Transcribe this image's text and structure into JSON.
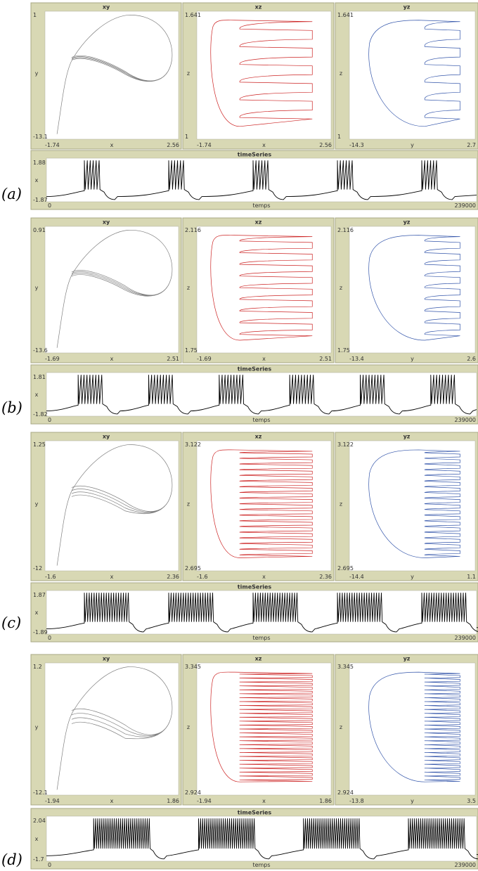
{
  "chart_data": [
    {
      "panel": "(a)",
      "type": "line",
      "phase": {
        "xy": {
          "title": "xy",
          "xlabel": "x",
          "ylabel": "y",
          "xlim": [
            -1.74,
            2.56
          ],
          "ylim": [
            -13.1,
            1
          ],
          "x_tick_labels": [
            "-1.74",
            "2.56"
          ],
          "y_tick_labels": [
            "1",
            "-13.1"
          ]
        },
        "xz": {
          "title": "xz",
          "xlabel": "x",
          "ylabel": "z",
          "xlim": [
            -1.74,
            2.56
          ],
          "ylim": [
            1,
            1.641
          ],
          "x_tick_labels": [
            "-1.74",
            "2.56"
          ],
          "y_tick_labels": [
            "1.641",
            "1"
          ]
        },
        "yz": {
          "title": "yz",
          "xlabel": "y",
          "ylabel": "z",
          "xlim": [
            -14.3,
            2.7
          ],
          "ylim": [
            1,
            1.641
          ],
          "x_tick_labels": [
            "-14.3",
            "2.7"
          ],
          "y_tick_labels": [
            "1.641",
            "1"
          ]
        }
      },
      "timeseries": {
        "title": "timeSeries",
        "xlabel": "temps",
        "ylabel": "x",
        "xlim": [
          0,
          239000
        ],
        "ylim": [
          -1.87,
          1.88
        ],
        "x_tick_labels": [
          "0",
          "239000"
        ],
        "y_tick_labels": [
          "1.88",
          "-1.87"
        ],
        "spikes_per_burst": 6,
        "bursts": 5
      },
      "colors": {
        "xy": "#808080",
        "xz": "#cc2222",
        "yz": "#3355aa",
        "timeseries": "#000000"
      }
    },
    {
      "panel": "(b)",
      "type": "line",
      "phase": {
        "xy": {
          "title": "xy",
          "xlabel": "x",
          "ylabel": "y",
          "xlim": [
            -1.69,
            2.51
          ],
          "ylim": [
            -13.6,
            0.91
          ],
          "x_tick_labels": [
            "-1.69",
            "2.51"
          ],
          "y_tick_labels": [
            "0.91",
            "-13.6"
          ]
        },
        "xz": {
          "title": "xz",
          "xlabel": "x",
          "ylabel": "z",
          "xlim": [
            -1.69,
            2.51
          ],
          "ylim": [
            1.75,
            2.116
          ],
          "x_tick_labels": [
            "-1.69",
            "2.51"
          ],
          "y_tick_labels": [
            "2.116",
            "1.75"
          ]
        },
        "yz": {
          "title": "yz",
          "xlabel": "y",
          "ylabel": "z",
          "xlim": [
            -13.4,
            2.6
          ],
          "ylim": [
            1.75,
            2.116
          ],
          "x_tick_labels": [
            "-13.4",
            "2.6"
          ],
          "y_tick_labels": [
            "2.116",
            "1.75"
          ]
        }
      },
      "timeseries": {
        "title": "timeSeries",
        "xlabel": "temps",
        "ylabel": "x",
        "xlim": [
          0,
          239000
        ],
        "ylim": [
          -1.82,
          1.81
        ],
        "x_tick_labels": [
          "0",
          "239000"
        ],
        "y_tick_labels": [
          "1.81",
          "-1.82"
        ],
        "spikes_per_burst": 9,
        "bursts": 6
      },
      "colors": {
        "xy": "#808080",
        "xz": "#cc2222",
        "yz": "#3355aa",
        "timeseries": "#000000"
      }
    },
    {
      "panel": "(c)",
      "type": "line",
      "phase": {
        "xy": {
          "title": "xy",
          "xlabel": "x",
          "ylabel": "y",
          "xlim": [
            -1.6,
            2.36
          ],
          "ylim": [
            -12,
            1.25
          ],
          "x_tick_labels": [
            "-1.6",
            "2.36"
          ],
          "y_tick_labels": [
            "1.25",
            "-12"
          ]
        },
        "xz": {
          "title": "xz",
          "xlabel": "x",
          "ylabel": "z",
          "xlim": [
            -1.6,
            2.36
          ],
          "ylim": [
            2.695,
            3.122
          ],
          "x_tick_labels": [
            "-1.6",
            "2.36"
          ],
          "y_tick_labels": [
            "3.122",
            "2.695"
          ]
        },
        "yz": {
          "title": "yz",
          "xlabel": "y",
          "ylabel": "z",
          "xlim": [
            -14.4,
            1.1
          ],
          "ylim": [
            2.695,
            3.122
          ],
          "x_tick_labels": [
            "-14.4",
            "1.1"
          ],
          "y_tick_labels": [
            "3.122",
            "2.695"
          ]
        }
      },
      "timeseries": {
        "title": "timeSeries",
        "xlabel": "temps",
        "ylabel": "x",
        "xlim": [
          0,
          239000
        ],
        "ylim": [
          -1.89,
          1.87
        ],
        "x_tick_labels": [
          "0",
          "239000"
        ],
        "y_tick_labels": [
          "1.87",
          "-1.89"
        ],
        "spikes_per_burst": 19,
        "bursts": 5
      },
      "colors": {
        "xy": "#808080",
        "xz": "#cc2222",
        "yz": "#3355aa",
        "timeseries": "#000000"
      }
    },
    {
      "panel": "(d)",
      "type": "line",
      "phase": {
        "xy": {
          "title": "xy",
          "xlabel": "x",
          "ylabel": "y",
          "xlim": [
            -1.94,
            1.86
          ],
          "ylim": [
            -12.1,
            1.2
          ],
          "x_tick_labels": [
            "-1.94",
            "1.86"
          ],
          "y_tick_labels": [
            "1.2",
            "-12.1"
          ]
        },
        "xz": {
          "title": "xz",
          "xlabel": "x",
          "ylabel": "z",
          "xlim": [
            -1.94,
            1.86
          ],
          "ylim": [
            2.924,
            3.345
          ],
          "x_tick_labels": [
            "-1.94",
            "1.86"
          ],
          "y_tick_labels": [
            "3.345",
            "2.924"
          ]
        },
        "yz": {
          "title": "yz",
          "xlabel": "y",
          "ylabel": "z",
          "xlim": [
            -13.8,
            3.5
          ],
          "ylim": [
            2.924,
            3.345
          ],
          "x_tick_labels": [
            "-13.8",
            "3.5"
          ],
          "y_tick_labels": [
            "3.345",
            "2.924"
          ]
        }
      },
      "timeseries": {
        "title": "timeSeries",
        "xlabel": "temps",
        "ylabel": "x",
        "xlim": [
          0,
          239000
        ],
        "ylim": [
          -1.7,
          2.04
        ],
        "x_tick_labels": [
          "0",
          "239000"
        ],
        "y_tick_labels": [
          "2.04",
          "-1.7"
        ],
        "spikes_per_burst": 28,
        "bursts": 4
      },
      "colors": {
        "xy": "#808080",
        "xz": "#cc2222",
        "yz": "#3355aa",
        "timeseries": "#000000"
      }
    }
  ]
}
